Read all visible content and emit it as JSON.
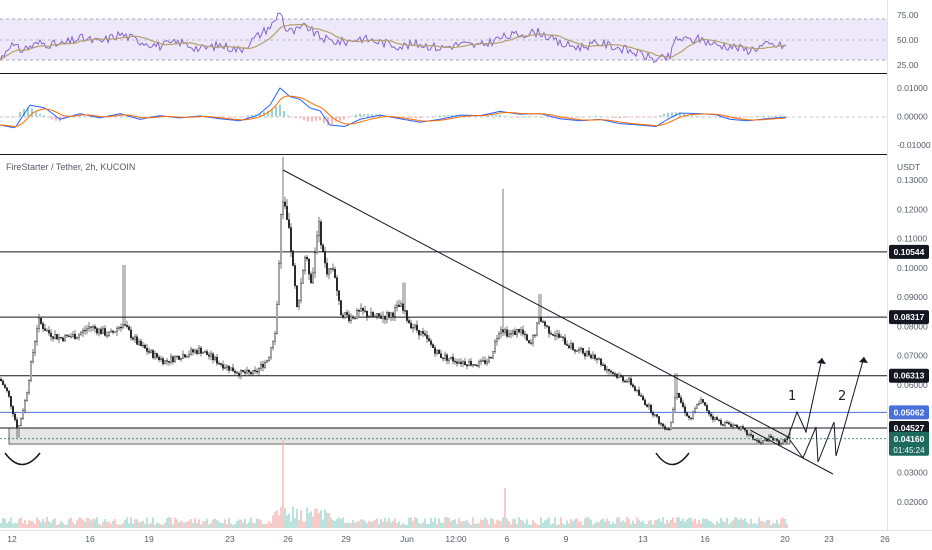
{
  "chart_data": {
    "type": "candlestick",
    "legend": "FireStarter / Tether, 2h, KUCOIN",
    "currency": "USDT",
    "price_axis": {
      "ticks": [
        "0.13000",
        "0.12000",
        "0.11000",
        "0.10000",
        "0.09000",
        "0.08000",
        "0.07000",
        "0.06000",
        "0.05000",
        "0.04000",
        "0.03000",
        "0.02000"
      ],
      "tick_values": [
        0.13,
        0.12,
        0.11,
        0.1,
        0.09,
        0.08,
        0.07,
        0.06,
        0.05,
        0.04,
        0.03,
        0.02
      ],
      "ylim": [
        0.0155,
        0.1385
      ]
    },
    "time_axis": {
      "labels": [
        "12",
        "16",
        "19",
        "23",
        "26",
        "29",
        "Jun",
        "12:00",
        "6",
        "9",
        "13",
        "16",
        "20",
        "23",
        "26"
      ]
    },
    "horizontal_levels": [
      {
        "label": "0.10544",
        "value": 0.10544,
        "color": "#131722"
      },
      {
        "label": "0.08317",
        "value": 0.08317,
        "color": "#131722"
      },
      {
        "label": "0.06313",
        "value": 0.06313,
        "color": "#131722"
      },
      {
        "label": "0.05062",
        "value": 0.05062,
        "color": "#4a6fd8"
      },
      {
        "label": "0.04527",
        "value": 0.04527,
        "color": "#131722"
      }
    ],
    "last_price": {
      "value": "0.04160",
      "countdown": "01:45:24",
      "color": "#1e6b5e"
    },
    "scenario_labels": [
      "1",
      "2"
    ],
    "rsi": {
      "ticks": [
        "75.00",
        "50.00",
        "25.00"
      ],
      "tick_values": [
        75,
        50,
        25
      ],
      "band": [
        30,
        70
      ],
      "ylim": [
        21,
        81
      ]
    },
    "macd": {
      "ticks": [
        "0.01000",
        "0.00000",
        "-0.01000"
      ],
      "tick_values": [
        0.01,
        0,
        -0.01
      ],
      "ylim": [
        -0.0108,
        0.0126
      ]
    },
    "colors": {
      "up": "#26a69a",
      "down": "#ef5350",
      "candle": "#222222",
      "rsi_line": "#7e57c2",
      "rsi_ma": "#b5a06e",
      "macd_line": "#2962ff",
      "signal_line": "#ff6d00",
      "zone_fill": "#e3e6e3"
    }
  }
}
